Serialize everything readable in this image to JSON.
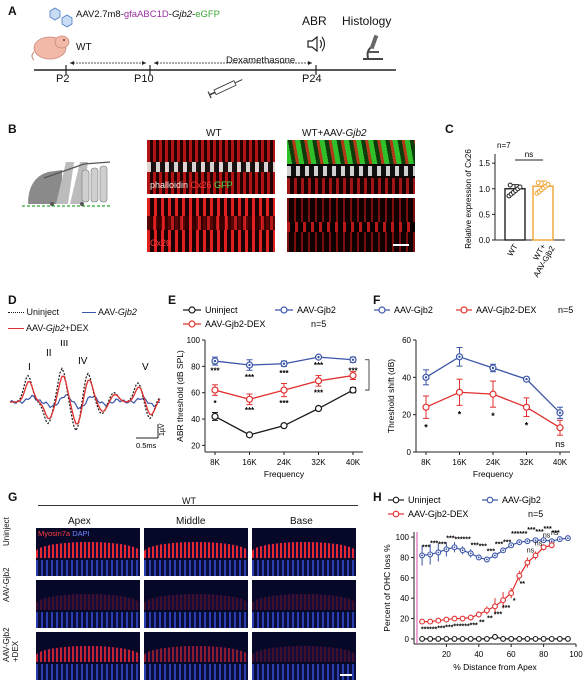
{
  "panels": {
    "a": "A",
    "b": "B",
    "c": "C",
    "d": "D",
    "e": "E",
    "f": "F",
    "g": "G",
    "h": "H"
  },
  "timeline": {
    "vector_prefix": "AAV2.7m8-",
    "vector_promoter": "gfaABC1D",
    "vector_dash1": "-",
    "vector_gene": "Gjb2",
    "vector_dash2": "-",
    "vector_reporter": "eGFP",
    "mouse_label": "WT",
    "dex_label": "Dexamethasone",
    "abr_label": "ABR",
    "histology_label": "Histology",
    "p2": "P2",
    "p10": "P10",
    "p24": "P24"
  },
  "panel_b": {
    "header_wt": "WT",
    "header_wt_aav": "WT+AAV-",
    "header_gene": "Gjb2",
    "stain_phalloidin": "phalloidin",
    "stain_cx26": "Cx26",
    "stain_gfp": "GFP",
    "stain_cx26_only": "Cx26"
  },
  "panel_c": {
    "ylabel": "Relative  expression of Cx26",
    "n_label": "n=7",
    "ns_label": "ns",
    "cat_wt": "WT",
    "cat_wt_aav": "WT+",
    "cat_wt_aav2": "AAV-Gjb2",
    "y_ticks": [
      "0.0",
      "0.5",
      "1.0",
      "1.5"
    ]
  },
  "panel_d": {
    "legend_uninject": "Uninject",
    "legend_aav": "AAV-",
    "legend_aav_gene": "Gjb2",
    "legend_dex_pre": "AAV-",
    "legend_dex_gene": "Gjb2",
    "legend_dex_post": "+DEX",
    "wave_I": "I",
    "wave_II": "II",
    "wave_III": "III",
    "wave_IV": "IV",
    "wave_V": "V",
    "scale_time": "0.5ms",
    "scale_amp": "1µV"
  },
  "colors": {
    "uninject": "#1a1a1a",
    "aav": "#3b55a8",
    "dex": "#e0302f",
    "cx26_red": "#e02020",
    "gfp_green": "#34c62a",
    "gene_purple": "#9b2fa0",
    "gfp_text": "#3aa935",
    "wt_bar": "#222222",
    "aav_bar": "#f0a330"
  },
  "chart_data": [
    {
      "id": "c",
      "type": "bar",
      "categories": [
        "WT",
        "WT+AAV-Gjb2"
      ],
      "values": [
        1.0,
        1.05
      ],
      "errors": [
        0.08,
        0.1
      ],
      "ylabel": "Relative  expression of Cx26",
      "ylim": [
        0,
        1.6
      ],
      "annotation": "ns",
      "n": "n=7"
    },
    {
      "id": "e",
      "type": "line",
      "x": [
        "8K",
        "16K",
        "24K",
        "32K",
        "40K"
      ],
      "xlabel": "Frequency",
      "ylabel": "ABR threshold (dB SPL)",
      "ylim": [
        15,
        100
      ],
      "y_ticks": [
        20,
        40,
        60,
        80,
        100
      ],
      "n": "n=5",
      "series": [
        {
          "name": "Uninject",
          "values": [
            42,
            28,
            35,
            48,
            62
          ],
          "errors": [
            3,
            1,
            1,
            1,
            2
          ]
        },
        {
          "name": "AAV-Gjb2",
          "values": [
            84,
            81,
            82,
            87,
            85
          ],
          "errors": [
            3,
            4,
            2,
            1,
            2
          ]
        },
        {
          "name": "AAV-Gjb2-DEX",
          "values": [
            62,
            55,
            62,
            69,
            73
          ],
          "errors": [
            4,
            4,
            5,
            4,
            3
          ]
        }
      ],
      "sig_labels": [
        {
          "text": "***",
          "x": "8K",
          "y": 77
        },
        {
          "text": "*",
          "x": "8K",
          "y": 52
        },
        {
          "text": "***",
          "x": "16K",
          "y": 72
        },
        {
          "text": "***",
          "x": "16K",
          "y": 47
        },
        {
          "text": "***",
          "x": "24K",
          "y": 75
        },
        {
          "text": "***",
          "x": "24K",
          "y": 52
        },
        {
          "text": "***",
          "x": "32K",
          "y": 81
        },
        {
          "text": "***",
          "x": "32K",
          "y": 60
        },
        {
          "text": "***",
          "x": "40K",
          "y": 77
        }
      ]
    },
    {
      "id": "f",
      "type": "line",
      "x": [
        "8K",
        "16K",
        "24K",
        "32K",
        "40K"
      ],
      "xlabel": "Frequency",
      "ylabel": "Threshold shift (dB)",
      "ylim": [
        0,
        60
      ],
      "y_ticks": [
        0,
        20,
        40,
        60
      ],
      "n": "n=5",
      "series": [
        {
          "name": "AAV-Gjb2",
          "values": [
            40,
            51,
            45,
            39,
            21
          ],
          "errors": [
            4,
            5,
            2,
            1,
            3
          ]
        },
        {
          "name": "AAV-Gjb2-DEX",
          "values": [
            24,
            32,
            31,
            24,
            13
          ],
          "errors": [
            6,
            7,
            7,
            5,
            4
          ]
        }
      ],
      "sig_labels": [
        {
          "text": "*",
          "x": "8K"
        },
        {
          "text": "*",
          "x": "16K"
        },
        {
          "text": "*",
          "x": "24K"
        },
        {
          "text": "*",
          "x": "32K"
        },
        {
          "text": "ns",
          "x": "40K"
        }
      ]
    },
    {
      "id": "h",
      "type": "line",
      "xlabel": "% Distance from Apex",
      "ylabel": "Percent of OHC loss %",
      "xlim": [
        0,
        100
      ],
      "ylim": [
        -5,
        105
      ],
      "x_ticks": [
        20,
        40,
        60,
        80,
        100
      ],
      "y_ticks": [
        0,
        20,
        40,
        60,
        80,
        100
      ],
      "n": "n=5",
      "series": [
        {
          "name": "Uninject",
          "x": [
            5,
            10,
            15,
            20,
            25,
            30,
            35,
            40,
            45,
            50,
            55,
            60,
            65,
            70,
            75,
            80,
            85,
            90,
            95
          ],
          "y": [
            0,
            0,
            0,
            0,
            0,
            0,
            0,
            0,
            0,
            2,
            0,
            0,
            0,
            0,
            0,
            0,
            0,
            0,
            0
          ]
        },
        {
          "name": "AAV-Gjb2",
          "x": [
            5,
            10,
            15,
            20,
            25,
            30,
            35,
            40,
            45,
            50,
            55,
            60,
            65,
            70,
            75,
            80,
            85,
            90,
            95
          ],
          "y": [
            82,
            83,
            85,
            88,
            90,
            87,
            84,
            80,
            78,
            82,
            87,
            92,
            95,
            96,
            97,
            97,
            96,
            98,
            99
          ],
          "errors": [
            10,
            10,
            9,
            7,
            5,
            4,
            4,
            3,
            3,
            3,
            2,
            2,
            1,
            1,
            1,
            1,
            1,
            1,
            1
          ]
        },
        {
          "name": "AAV-Gjb2-DEX",
          "x": [
            5,
            10,
            15,
            20,
            25,
            30,
            35,
            40,
            45,
            50,
            55,
            60,
            65,
            70,
            75,
            80,
            85
          ],
          "y": [
            17,
            17,
            18,
            19,
            20,
            20,
            21,
            24,
            28,
            32,
            38,
            45,
            62,
            75,
            82,
            90,
            92
          ],
          "errors": [
            2,
            2,
            2,
            2,
            2,
            2,
            3,
            3,
            4,
            8,
            8,
            5,
            5,
            5,
            4,
            3,
            3
          ]
        }
      ],
      "sig_labels_top": [
        "***",
        "***",
        "***",
        "***",
        "***",
        "***",
        "***",
        "***",
        "***",
        "***",
        "***",
        "***",
        "***",
        "***",
        "***",
        "***",
        "***"
      ],
      "sig_labels_bottom": [
        "***",
        "***",
        "***",
        "***",
        "***",
        "***",
        "***",
        "**",
        "**",
        "***",
        "***",
        "*",
        "**",
        "ns",
        "ns",
        "ns",
        "ns"
      ],
      "legend_uninject": "Uninject",
      "legend_aav": "AAV-Gjb2",
      "legend_dex": "AAV-Gjb2-DEX"
    }
  ],
  "panel_g": {
    "title": "WT",
    "col_apex": "Apex",
    "col_middle": "Middle",
    "col_base": "Base",
    "row_uninject": "Uninject",
    "row_aav": "AAV-Gjb2",
    "row_dex1": "AAV-Gjb2",
    "row_dex2": "+DEX",
    "stain_myosin": "Myosin7a",
    "stain_dapi": "DAPI"
  }
}
